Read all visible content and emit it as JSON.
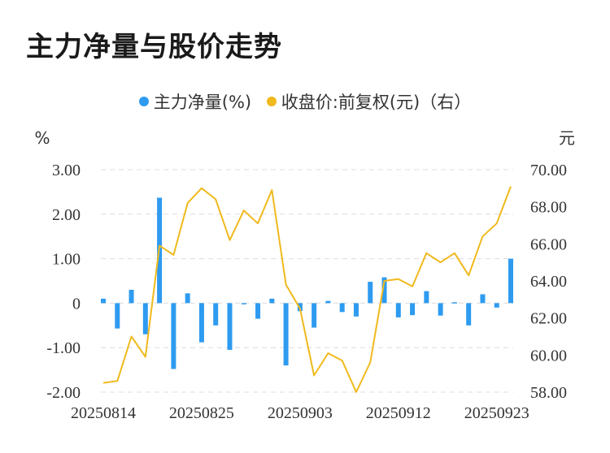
{
  "page": {
    "title": "主力净量与股价走势"
  },
  "chart_data": {
    "type": "bar+line",
    "title": "主力净量与股价走势",
    "legend": [
      {
        "name": "主力净量(%)",
        "color": "#2e9bf0"
      },
      {
        "name": "收盘价:前复权(元)（右）",
        "color": "#f0b91c"
      }
    ],
    "left_axis": {
      "unit": "%",
      "ticks": [
        3.0,
        2.0,
        1.0,
        0,
        -1.0,
        -2.0
      ],
      "tick_labels": [
        "3.00",
        "2.00",
        "1.00",
        "0",
        "-1.00",
        "-2.00"
      ],
      "range": [
        -2,
        3
      ]
    },
    "right_axis": {
      "unit": "元",
      "ticks": [
        70,
        68,
        66,
        64,
        62,
        60,
        58
      ],
      "tick_labels": [
        "70.00",
        "68.00",
        "66.00",
        "64.00",
        "62.00",
        "60.00",
        "58.00"
      ],
      "range": [
        58,
        70
      ]
    },
    "x_tick_labels": [
      {
        "index": 0,
        "label": "20250814"
      },
      {
        "index": 7,
        "label": "20250825"
      },
      {
        "index": 14,
        "label": "20250903"
      },
      {
        "index": 21,
        "label": "20250912"
      },
      {
        "index": 28,
        "label": "20250923"
      }
    ],
    "grid": "horizontal dashed",
    "series": [
      {
        "name": "主力净量(%)",
        "type": "bar",
        "color": "#2e9bf0",
        "values": [
          0.1,
          -0.57,
          0.3,
          -0.7,
          2.37,
          -1.48,
          0.22,
          -0.88,
          -0.5,
          -1.05,
          0.0,
          -0.35,
          0.1,
          -1.4,
          -0.18,
          -0.55,
          0.05,
          -0.2,
          -0.3,
          0.48,
          0.58,
          -0.32,
          -0.27,
          0.27,
          -0.28,
          0.02,
          -0.5,
          0.2,
          -0.1,
          1.0
        ]
      },
      {
        "name": "收盘价:前复权(元)（右）",
        "type": "line",
        "color": "#f0b91c",
        "values": [
          58.5,
          58.6,
          61.0,
          59.9,
          65.9,
          65.4,
          68.2,
          69.0,
          68.4,
          66.2,
          67.8,
          67.1,
          68.9,
          63.8,
          62.5,
          58.9,
          60.1,
          59.7,
          58.0,
          59.6,
          64.0,
          64.1,
          63.7,
          65.5,
          65.0,
          65.5,
          64.3,
          66.4,
          67.1,
          69.1
        ]
      }
    ]
  }
}
